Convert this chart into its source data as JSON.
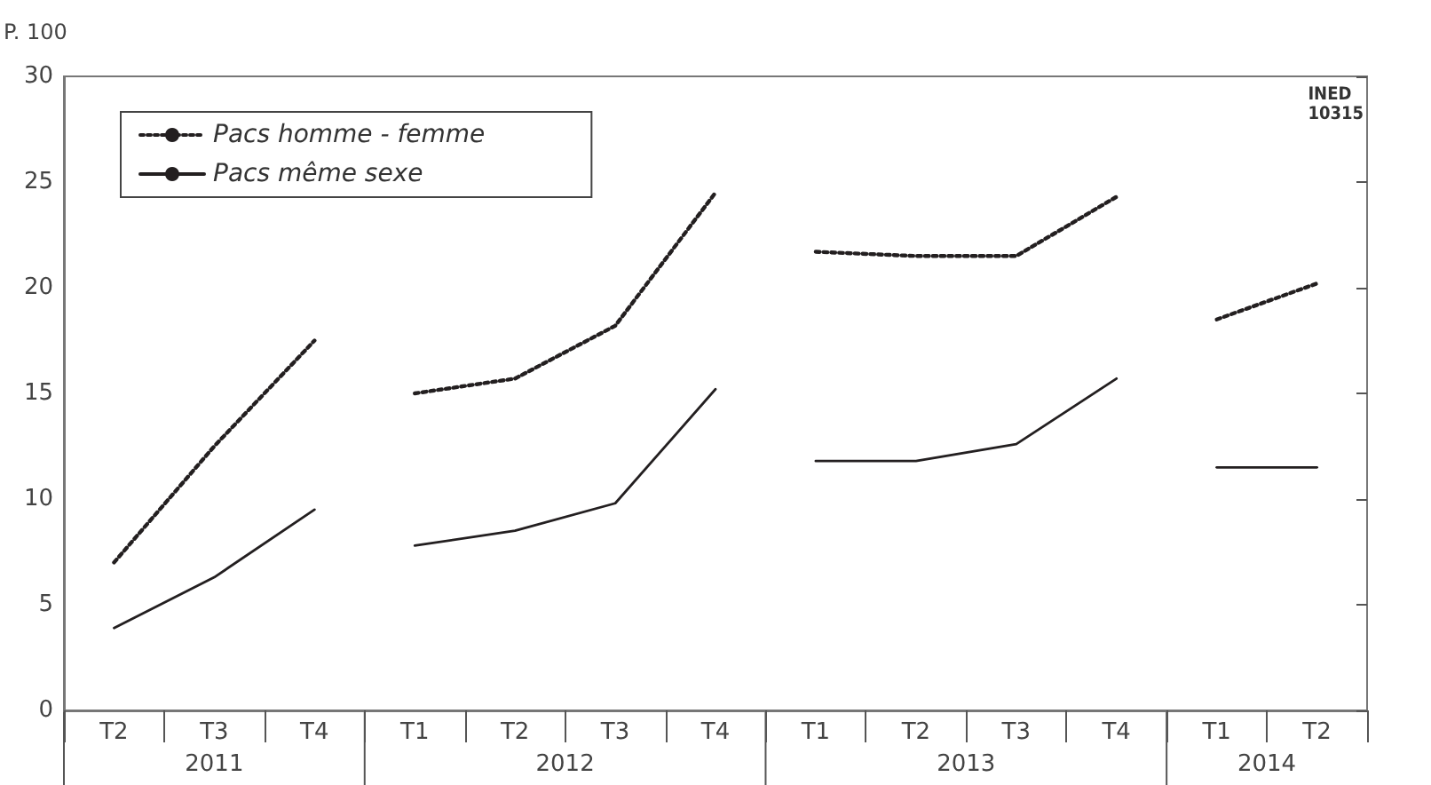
{
  "chart_data": {
    "type": "line",
    "ylabel": "P. 100",
    "categories": [
      "T2",
      "T3",
      "T4",
      "T1",
      "T2",
      "T3",
      "T4",
      "T1",
      "T2",
      "T3",
      "T4",
      "T1",
      "T2"
    ],
    "series": [
      {
        "name": "Pacs homme - femme",
        "color": "#231f20",
        "line_style": "dotted",
        "values": [
          7.0,
          12.5,
          17.5,
          15.0,
          15.7,
          18.2,
          24.5,
          21.7,
          21.5,
          21.5,
          24.3,
          18.5,
          20.2
        ]
      },
      {
        "name": "Pacs même sexe",
        "color": "#231f20",
        "line_style": "solid",
        "values": [
          3.9,
          6.3,
          9.5,
          7.8,
          8.5,
          9.8,
          15.2,
          11.8,
          11.8,
          12.6,
          15.7,
          11.5,
          11.5
        ]
      }
    ],
    "ylim": [
      0,
      30
    ],
    "yticks": [
      0,
      5,
      10,
      15,
      20,
      25,
      30
    ],
    "legend": "top left",
    "grid": false,
    "marker": "none",
    "annotations": [
      "INED 10315",
      "2011",
      "2012",
      "2013",
      "2014"
    ]
  }
}
